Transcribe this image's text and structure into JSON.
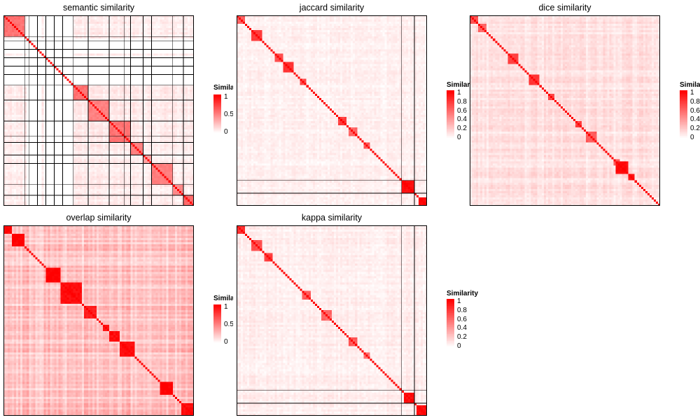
{
  "colors": {
    "high": "#ff0000",
    "low": "#ffffff",
    "border": "#000000"
  },
  "chart_data": [
    {
      "type": "heatmap",
      "title": "semantic similarity",
      "n": 90,
      "legend_title": "Similarity",
      "legend_ticks": [
        1,
        0.5,
        0
      ],
      "clusters": [
        {
          "start": 0,
          "end": 10,
          "intra": 0.55
        },
        {
          "start": 10,
          "end": 12,
          "intra": 0.4
        },
        {
          "start": 12,
          "end": 16,
          "intra": 0.35
        },
        {
          "start": 16,
          "end": 20,
          "intra": 0.45
        },
        {
          "start": 20,
          "end": 24,
          "intra": 0.4
        },
        {
          "start": 24,
          "end": 28,
          "intra": 0.35
        },
        {
          "start": 28,
          "end": 33,
          "intra": 0.4
        },
        {
          "start": 33,
          "end": 40,
          "intra": 0.55
        },
        {
          "start": 40,
          "end": 50,
          "intra": 0.5
        },
        {
          "start": 50,
          "end": 60,
          "intra": 0.55
        },
        {
          "start": 60,
          "end": 66,
          "intra": 0.5
        },
        {
          "start": 66,
          "end": 70,
          "intra": 0.35
        },
        {
          "start": 70,
          "end": 80,
          "intra": 0.5
        },
        {
          "start": 80,
          "end": 85,
          "intra": 0.45
        },
        {
          "start": 85,
          "end": 90,
          "intra": 0.6
        }
      ],
      "background": 0.08,
      "white_stripes": [
        11,
        12,
        13,
        14,
        15,
        16,
        17,
        19,
        20,
        21,
        22,
        23,
        24,
        25,
        26,
        27,
        28,
        29,
        30,
        31,
        32
      ],
      "border_lines": [
        10,
        12,
        16,
        20,
        24,
        28,
        33,
        40,
        50,
        57,
        60,
        66,
        70,
        80,
        85
      ]
    },
    {
      "type": "heatmap",
      "title": "jaccard similarity",
      "n": 90,
      "legend_title": "Similarity",
      "legend_ticks": [
        1,
        0.8,
        0.6,
        0.4,
        0.2,
        0
      ],
      "clusters": [
        {
          "start": 0,
          "end": 4,
          "intra": 0.6
        },
        {
          "start": 7,
          "end": 12,
          "intra": 0.75
        },
        {
          "start": 18,
          "end": 22,
          "intra": 0.7
        },
        {
          "start": 22,
          "end": 27,
          "intra": 0.8
        },
        {
          "start": 30,
          "end": 33,
          "intra": 0.7
        },
        {
          "start": 48,
          "end": 52,
          "intra": 0.75
        },
        {
          "start": 53,
          "end": 57,
          "intra": 0.6
        },
        {
          "start": 60,
          "end": 63,
          "intra": 0.65
        },
        {
          "start": 78,
          "end": 84,
          "intra": 0.95
        },
        {
          "start": 86,
          "end": 90,
          "intra": 0.95
        }
      ],
      "background": 0.06,
      "white_stripes": [],
      "border_lines": [
        78,
        84
      ]
    },
    {
      "type": "heatmap",
      "title": "dice similarity",
      "n": 90,
      "legend_title": "Similarity",
      "legend_ticks": [
        1,
        0.8,
        0.6,
        0.4,
        0.2,
        0
      ],
      "clusters": [
        {
          "start": 0,
          "end": 4,
          "intra": 0.7
        },
        {
          "start": 4,
          "end": 8,
          "intra": 0.6
        },
        {
          "start": 18,
          "end": 23,
          "intra": 0.75
        },
        {
          "start": 28,
          "end": 33,
          "intra": 0.8
        },
        {
          "start": 37,
          "end": 40,
          "intra": 0.7
        },
        {
          "start": 50,
          "end": 53,
          "intra": 0.75
        },
        {
          "start": 55,
          "end": 60,
          "intra": 0.65
        },
        {
          "start": 68,
          "end": 71,
          "intra": 0.65
        },
        {
          "start": 69,
          "end": 75,
          "intra": 0.95
        },
        {
          "start": 75,
          "end": 78,
          "intra": 0.9
        }
      ],
      "background": 0.12,
      "white_stripes": [],
      "border_lines": []
    },
    {
      "type": "heatmap",
      "title": "overlap similarity",
      "n": 90,
      "legend_title": "Similarity",
      "legend_ticks": [
        1,
        0.5,
        0
      ],
      "clusters": [
        {
          "start": 0,
          "end": 4,
          "intra": 0.95
        },
        {
          "start": 4,
          "end": 10,
          "intra": 1
        },
        {
          "start": 20,
          "end": 27,
          "intra": 1
        },
        {
          "start": 27,
          "end": 37,
          "intra": 0.95
        },
        {
          "start": 38,
          "end": 44,
          "intra": 0.9
        },
        {
          "start": 47,
          "end": 50,
          "intra": 0.9
        },
        {
          "start": 50,
          "end": 55,
          "intra": 0.95
        },
        {
          "start": 55,
          "end": 62,
          "intra": 0.95
        },
        {
          "start": 74,
          "end": 80,
          "intra": 1
        },
        {
          "start": 84,
          "end": 90,
          "intra": 0.95
        }
      ],
      "background": 0.25,
      "white_stripes": [],
      "border_lines": []
    },
    {
      "type": "heatmap",
      "title": "kappa similarity",
      "n": 90,
      "legend_title": "Similarity",
      "legend_ticks": [
        1,
        0.8,
        0.6,
        0.4,
        0.2,
        0
      ],
      "clusters": [
        {
          "start": 0,
          "end": 4,
          "intra": 0.8
        },
        {
          "start": 7,
          "end": 12,
          "intra": 0.7
        },
        {
          "start": 13,
          "end": 17,
          "intra": 0.75
        },
        {
          "start": 31,
          "end": 35,
          "intra": 0.65
        },
        {
          "start": 40,
          "end": 45,
          "intra": 0.6
        },
        {
          "start": 53,
          "end": 57,
          "intra": 0.65
        },
        {
          "start": 60,
          "end": 63,
          "intra": 0.6
        },
        {
          "start": 79,
          "end": 84,
          "intra": 0.95
        },
        {
          "start": 85,
          "end": 90,
          "intra": 0.95
        }
      ],
      "background": 0.07,
      "white_stripes": [],
      "border_lines": [
        78,
        84
      ]
    }
  ]
}
